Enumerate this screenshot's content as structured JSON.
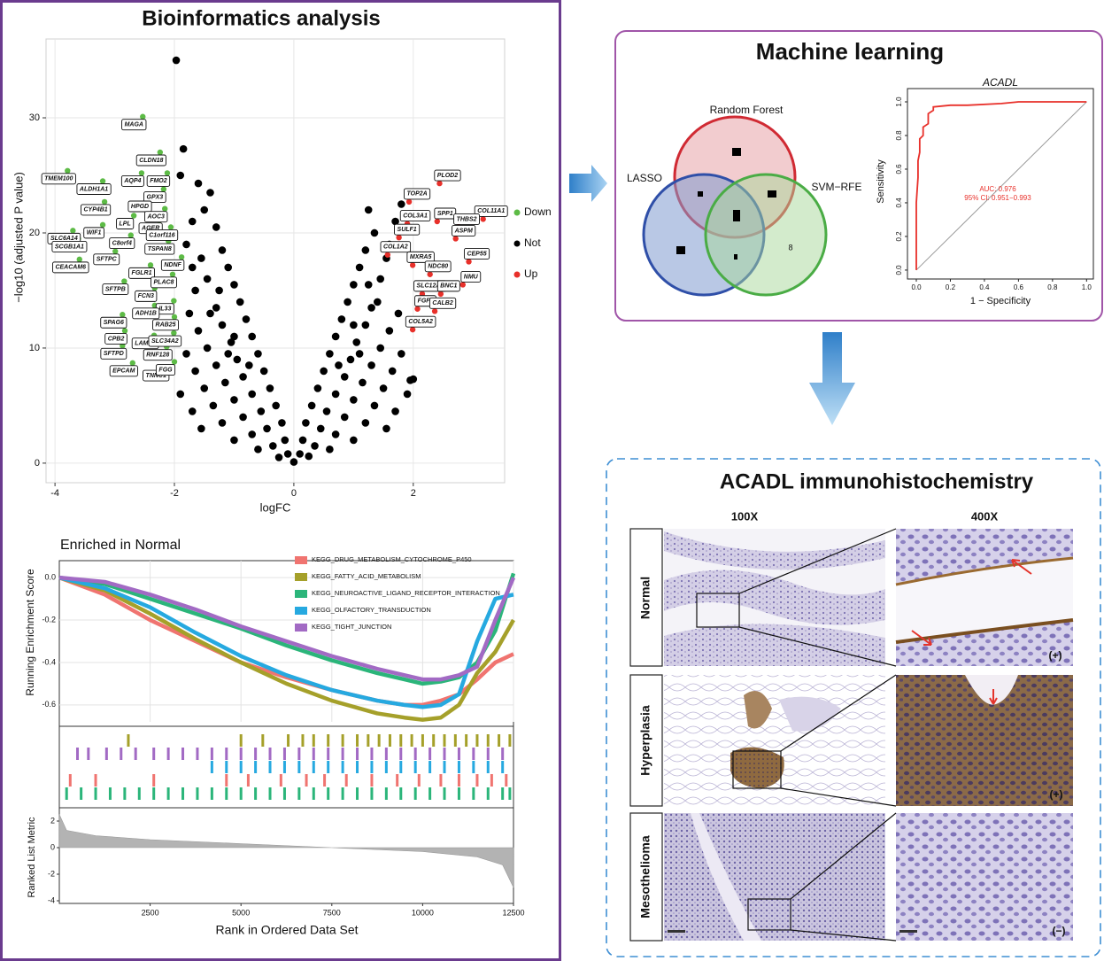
{
  "panels": {
    "bioinformatics": "Bioinformatics analysis",
    "machine_learning": "Machine learning",
    "ihc": "ACADL immunohistochemistry"
  },
  "chart_data": [
    {
      "type": "scatter",
      "xlabel": "logFC",
      "ylabel": "−log10 (adjusted P value)",
      "xlim": [
        -4.15,
        3.53
      ],
      "ylim": [
        -1.7,
        36.85
      ],
      "xticks": [
        -4,
        -2,
        0,
        2
      ],
      "yticks": [
        0,
        10,
        20,
        30
      ],
      "grid": true,
      "series": [
        {
          "name": "Down",
          "color": "#5dbb46",
          "x": [
            -3.79,
            -2.53,
            -2.24,
            -2.55,
            -2.12,
            -3.2,
            -2.18,
            -3.17,
            -2.43,
            -2.16,
            -2.68,
            -2.25,
            -3.2,
            -2.06,
            -3.7,
            -2.73,
            -2.1,
            -3.61,
            -2.99,
            -1.88,
            -3.59,
            -2.4,
            -2.03,
            -2.84,
            -2.33,
            -2.01,
            -2.33,
            -2.87,
            -2.0,
            -2.83,
            -2.34,
            -2.01,
            -2.87,
            -2.13,
            -2.7,
            -2.16,
            -2.0
          ],
          "values": [
            25.4,
            30.1,
            27.0,
            25.2,
            25.2,
            24.5,
            23.8,
            22.7,
            23.0,
            22.1,
            21.5,
            21.1,
            20.7,
            20.5,
            20.2,
            19.8,
            19.3,
            19.5,
            18.4,
            17.9,
            17.7,
            17.2,
            16.4,
            15.8,
            15.2,
            14.1,
            13.7,
            12.9,
            12.7,
            11.5,
            11.1,
            11.3,
            10.2,
            10.1,
            8.7,
            8.3,
            8.8
          ],
          "labels": [
            "TMEM100",
            "MAGA",
            "CLDN18",
            "AQP4",
            "FMO2",
            "ALDH1A1",
            "GPX3",
            "CYP4B1",
            "HPGD",
            "AOC3",
            "LPL",
            "AGER",
            "WIF1",
            "C1orf116",
            "SLC6A14",
            "C8orf4",
            "TSPAN8",
            "SCGB1A1",
            "SFTPC",
            "NDNF",
            "CEACAM6",
            "FGLR1",
            "PLAC8",
            "SFTPB",
            "FCN3",
            "IL33",
            "ADH1B",
            "SPAG6",
            "RAB25",
            "CPB2",
            "LAMP3",
            "SLC34A2",
            "SFTPD",
            "RNF128",
            "EPCAM",
            "TNNC1",
            "FGG"
          ]
        },
        {
          "name": "Not",
          "color": "#000000",
          "x": [
            -1.97,
            -1.85,
            -1.9,
            -1.6,
            -1.4,
            -1.5,
            -1.7,
            -1.3,
            -1.8,
            -1.2,
            -1.55,
            -1.1,
            -1.45,
            -1.0,
            -1.65,
            -0.9,
            -1.3,
            -1.75,
            -0.8,
            -1.2,
            -1.6,
            -0.7,
            -1.05,
            -1.45,
            -1.8,
            -0.6,
            -0.95,
            -1.3,
            -1.65,
            -0.5,
            -0.85,
            -1.15,
            -1.5,
            -1.9,
            -0.4,
            -0.7,
            -1.0,
            -1.35,
            -1.7,
            -0.3,
            -0.55,
            -0.85,
            -1.2,
            -1.55,
            -0.2,
            -0.45,
            -0.7,
            -1.0,
            -0.15,
            -0.35,
            -0.6,
            -0.1,
            -0.25,
            0,
            0.1,
            0.25,
            0.15,
            0.35,
            0.6,
            0.2,
            0.45,
            0.7,
            1.0,
            0.3,
            0.55,
            0.85,
            1.2,
            1.55,
            0.4,
            0.7,
            1.0,
            1.35,
            1.7,
            0.5,
            0.85,
            1.15,
            1.5,
            1.9,
            0.6,
            0.95,
            1.3,
            1.65,
            0.7,
            1.05,
            1.45,
            1.8,
            0.8,
            1.2,
            1.6,
            0.9,
            1.3,
            1.75,
            1.0,
            1.45,
            1.1,
            1.55,
            1.2,
            1.35,
            1.7,
            1.25,
            1.8,
            1.95,
            2.0,
            -1.0,
            -1.4,
            -1.25,
            -1.7,
            -1.1,
            -0.75,
            1.0,
            1.4,
            1.25,
            0.75,
            1.1,
            1.6
          ],
          "values": [
            35.0,
            27.3,
            25,
            24.3,
            23.5,
            22,
            21,
            20.5,
            19,
            18.5,
            17.8,
            17,
            16,
            15.5,
            15,
            14,
            13.5,
            13,
            12.5,
            12,
            11.5,
            11,
            10.5,
            10,
            9.5,
            9.5,
            9,
            8.5,
            8,
            8,
            7.5,
            7,
            6.5,
            6,
            6.5,
            6,
            5.5,
            5,
            4.5,
            5,
            4.5,
            4,
            3.5,
            3,
            3.5,
            3,
            2.5,
            2,
            2,
            1.5,
            1.2,
            0.8,
            0.5,
            0.1,
            0.8,
            0.6,
            2,
            1.5,
            1.2,
            3.5,
            3,
            2.5,
            2,
            5,
            4.5,
            4,
            3.5,
            3,
            6.5,
            6,
            5.5,
            5,
            4.5,
            8,
            7.5,
            7,
            6.5,
            6,
            9.5,
            9,
            8.5,
            8,
            11,
            10.5,
            10,
            9.5,
            12.5,
            12,
            11.5,
            14,
            13.5,
            13,
            15.5,
            16,
            17,
            17.8,
            18.5,
            20,
            21,
            22,
            22.5,
            7.2,
            7.3,
            11,
            13,
            15,
            17,
            9.5,
            8.5,
            12,
            14,
            15.5,
            8.5,
            9.5,
            19
          ]
        },
        {
          "name": "Up",
          "color": "#e8302a",
          "x": [
            2.44,
            1.93,
            3.17,
            2.4,
            1.9,
            2.76,
            1.76,
            2.71,
            1.57,
            2.93,
            1.99,
            2.28,
            2.83,
            2.15,
            2.46,
            2.07,
            2.36,
            1.99
          ],
          "values": [
            24.3,
            22.7,
            21.2,
            21.0,
            20.8,
            20.5,
            19.6,
            19.5,
            18.1,
            17.5,
            17.2,
            16.4,
            15.5,
            14.7,
            14.7,
            13.4,
            13.2,
            11.6
          ],
          "labels": [
            "PLOD2",
            "TOP2A",
            "COL11A1",
            "SPP1",
            "COL3A1",
            "THBS2",
            "SULF1",
            "ASPM",
            "COL1A2",
            "CEP55",
            "MXRA5",
            "NDC80",
            "NMU",
            "SLC12A8",
            "BNC1",
            "FGF9",
            "CALB2",
            "COL5A2"
          ]
        }
      ]
    },
    {
      "type": "line",
      "title": "Enriched in Normal",
      "ylabel": "Running Enrichment Score",
      "xlim": [
        0,
        12500
      ],
      "ylim": [
        -0.68,
        0.08
      ],
      "xticks": [
        2500,
        5000,
        7500,
        10000,
        12500
      ],
      "yticks": [
        {
          "value": 0,
          "label": "0.0"
        },
        -0.2,
        -0.4,
        -0.6
      ],
      "grid": true,
      "x": [
        0,
        1250,
        2500,
        3750,
        5000,
        6250,
        7500,
        8750,
        9500,
        10000,
        10500,
        11000,
        11500,
        12000,
        12500
      ],
      "series": [
        {
          "name": "KEGG_DRUG_METABOLISM_CYTOCHROME_P450",
          "color": "#f07470",
          "values": [
            0,
            -0.08,
            -0.2,
            -0.3,
            -0.4,
            -0.47,
            -0.53,
            -0.58,
            -0.6,
            -0.6,
            -0.58,
            -0.55,
            -0.48,
            -0.4,
            -0.36
          ],
          "hits": [
            300,
            1000,
            2600,
            4600,
            5200,
            6100,
            6800,
            7300,
            7900,
            8600,
            9300,
            9900,
            10500,
            11000,
            11500,
            11900,
            12300
          ]
        },
        {
          "name": "KEGG_FATTY_ACID_METABOLISM",
          "color": "#a5a02a",
          "values": [
            0,
            -0.06,
            -0.17,
            -0.29,
            -0.4,
            -0.5,
            -0.58,
            -0.64,
            -0.66,
            -0.67,
            -0.66,
            -0.6,
            -0.45,
            -0.35,
            -0.2
          ],
          "hits": [
            1900,
            5000,
            5600,
            6300,
            6700,
            7000,
            7400,
            7800,
            8200,
            8500,
            8800,
            9100,
            9400,
            9700,
            10000,
            10300,
            10600,
            10900,
            11200,
            11500,
            11800,
            12100,
            12400
          ]
        },
        {
          "name": "KEGG_NEUROACTIVE_LIGAND_RECEPTOR_INTERACTION",
          "color": "#2bb57a",
          "values": [
            0,
            -0.03,
            -0.1,
            -0.17,
            -0.24,
            -0.32,
            -0.39,
            -0.45,
            -0.48,
            -0.5,
            -0.49,
            -0.47,
            -0.4,
            -0.25,
            0.02
          ],
          "hits": [
            200,
            600,
            1000,
            1400,
            1800,
            2200,
            2600,
            3000,
            3400,
            3800,
            4200,
            4600,
            5000,
            5400,
            5800,
            6200,
            6600,
            7000,
            7400,
            7800,
            8200,
            8600,
            9000,
            9400,
            9800,
            10200,
            10600,
            11000,
            11400,
            11800,
            12200,
            12400
          ]
        },
        {
          "name": "KEGG_OLFACTORY_TRANSDUCTION",
          "color": "#26a9e0",
          "values": [
            0,
            -0.05,
            -0.14,
            -0.26,
            -0.37,
            -0.46,
            -0.53,
            -0.58,
            -0.6,
            -0.61,
            -0.6,
            -0.55,
            -0.3,
            -0.1,
            -0.08
          ],
          "hits": [
            4200,
            4600,
            5000,
            5400,
            5800,
            6200,
            6600,
            7000,
            7400,
            7800,
            8200,
            8600,
            9000,
            9400,
            9800,
            10200,
            10600,
            11000,
            11400,
            11800,
            12200
          ]
        },
        {
          "name": "KEGG_TIGHT_JUNCTION",
          "color": "#a26ac4",
          "values": [
            0,
            -0.02,
            -0.08,
            -0.15,
            -0.23,
            -0.3,
            -0.37,
            -0.43,
            -0.46,
            -0.48,
            -0.48,
            -0.46,
            -0.42,
            -0.2,
            0.0
          ],
          "hits": [
            500,
            800,
            1300,
            1700,
            2100,
            2600,
            3000,
            3400,
            3800,
            4200,
            4600,
            5000,
            5400,
            5800,
            6200,
            6600,
            7000,
            7400,
            7800,
            8200,
            8600,
            9000,
            9400,
            9800,
            10200,
            10600,
            11000,
            11400,
            11800,
            12200
          ]
        }
      ]
    },
    {
      "type": "area",
      "ylabel": "Ranked List Metric",
      "xlabel": "Rank in Ordered Data Set",
      "xlim": [
        0,
        12500
      ],
      "xticks": [
        2500,
        5000,
        7500,
        10000,
        12500
      ],
      "ylim": [
        -4.2,
        2.8
      ],
      "yticks": [
        2,
        0,
        -2,
        -4
      ],
      "color": "#b3b3b3",
      "x": [
        0,
        200,
        1000,
        2500,
        5000,
        7500,
        10000,
        11500,
        12200,
        12500
      ],
      "values": [
        2.5,
        1.3,
        0.9,
        0.6,
        0.3,
        0,
        -0.3,
        -0.7,
        -1.3,
        -3
      ]
    },
    {
      "type": "line",
      "title": "ACADL",
      "xlabel": "1 − Specificity",
      "ylabel": "Sensitivity",
      "xlim": [
        -0.052,
        1.04
      ],
      "ylim": [
        -0.053,
        1.079
      ],
      "xticks": [
        {
          "value": 0,
          "label": "0.0"
        },
        0.2,
        0.4,
        0.6,
        0.8,
        {
          "value": 1,
          "label": "1.0"
        }
      ],
      "yticks": [
        {
          "value": 0,
          "label": "0.0"
        },
        0.2,
        0.4,
        0.6,
        0.8,
        {
          "value": 1,
          "label": "1.0"
        }
      ],
      "annotations": [
        "AUC: 0.976",
        "95% CI: 0.951−0.993"
      ],
      "series": [
        {
          "color": "#e8302a",
          "x": [
            0,
            0,
            0.01,
            0.01,
            0.02,
            0.02,
            0.04,
            0.04,
            0.07,
            0.07,
            0.1,
            0.1,
            0.2,
            0.3,
            0.5,
            0.6,
            1.0
          ],
          "values": [
            0,
            0.4,
            0.55,
            0.65,
            0.7,
            0.78,
            0.8,
            0.85,
            0.87,
            0.93,
            0.95,
            0.97,
            0.98,
            0.98,
            0.99,
            1,
            1
          ]
        }
      ]
    }
  ],
  "venn": {
    "sets": [
      "Random Forest",
      "LASSO",
      "SVM−RFE"
    ],
    "count": 8
  },
  "ihc": {
    "columns": [
      "100X",
      "400X"
    ],
    "rows": [
      {
        "label": "Normal",
        "grade": "(+)"
      },
      {
        "label": "Hyperplasia",
        "grade": "(+)"
      },
      {
        "label": "Mesothelioma",
        "grade": "(−)"
      }
    ]
  }
}
